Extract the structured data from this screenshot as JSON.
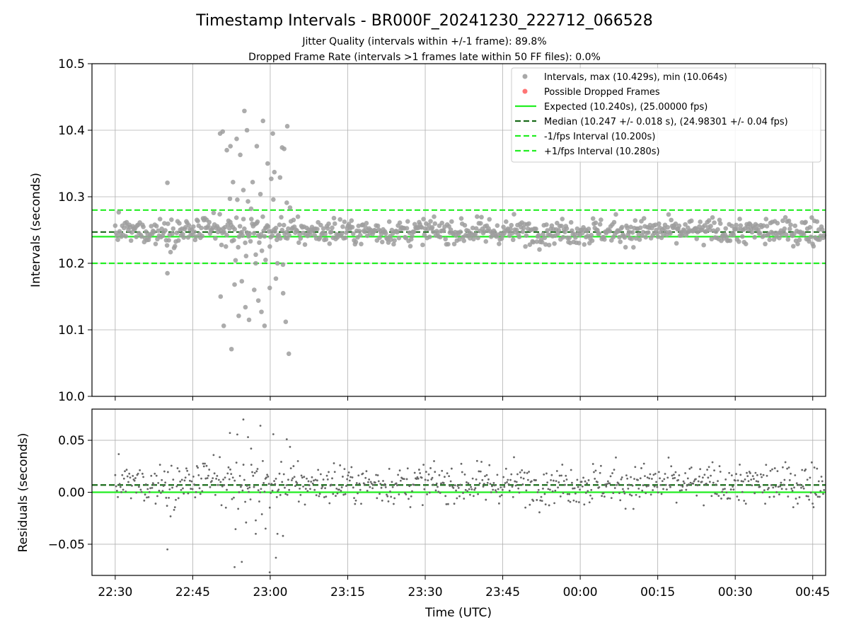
{
  "chart_data": {
    "type": "scatter",
    "title": "Timestamp Intervals - BR000F_20241230_222712_066528",
    "subtitle_lines": [
      "Jitter Quality (intervals within +/-1 frame): 89.8%",
      "Dropped Frame Rate (intervals >1 frames late within 50 FF files): 0.0%"
    ],
    "xlabel": "Time (UTC)",
    "x_ticks": [
      "22:30",
      "22:45",
      "23:00",
      "23:15",
      "23:30",
      "23:45",
      "00:00",
      "00:15",
      "00:30",
      "00:45"
    ],
    "x_tick_minutes": [
      0,
      15,
      30,
      45,
      60,
      75,
      90,
      105,
      120,
      135
    ],
    "x_range_minutes": [
      -4.5,
      137.5
    ],
    "grid": true,
    "legend_position": "top-right",
    "colors": {
      "points": "#9e9e9e",
      "dropped": "#ff6666",
      "expected": "#22ee22",
      "median": "#1a6b1a",
      "bounds": "#22ee22",
      "residual_points": "#666666"
    },
    "top_panel": {
      "ylabel": "Intervals (seconds)",
      "ylim": [
        10.0,
        10.5
      ],
      "y_ticks": [
        "10.0",
        "10.1",
        "10.2",
        "10.3",
        "10.4",
        "10.5"
      ],
      "y_tick_values": [
        10.0,
        10.1,
        10.2,
        10.3,
        10.4,
        10.5
      ],
      "reference_lines": [
        {
          "name": "Expected",
          "value": 10.24,
          "style": "solid"
        },
        {
          "name": "Median",
          "value": 10.247,
          "style": "dashed"
        },
        {
          "name": "-1/fps Interval",
          "value": 10.2,
          "style": "dashed"
        },
        {
          "name": "+1/fps Interval",
          "value": 10.28,
          "style": "dashed"
        }
      ],
      "legend": [
        {
          "label": "Intervals, max (10.429s), min (10.064s)",
          "kind": "dot",
          "color": "#9e9e9e"
        },
        {
          "label": "Possible Dropped Frames",
          "kind": "dot",
          "color": "#ff6666"
        },
        {
          "label": "Expected (10.240s), (25.00000 fps)",
          "kind": "solid",
          "color": "#22ee22"
        },
        {
          "label": "Median (10.247 +/- 0.018 s), (24.98301 +/- 0.04 fps)",
          "kind": "dashed",
          "color": "#1a6b1a"
        },
        {
          "label": "-1/fps Interval (10.200s)",
          "kind": "dashed",
          "color": "#22ee22"
        },
        {
          "label": "+1/fps Interval (10.280s)",
          "kind": "dashed",
          "color": "#22ee22"
        }
      ],
      "outliers": [
        {
          "x": 10.1,
          "y": 10.321
        },
        {
          "x": 10.1,
          "y": 10.185
        },
        {
          "x": 20.3,
          "y": 10.395
        },
        {
          "x": 20.8,
          "y": 10.398
        },
        {
          "x": 20.4,
          "y": 10.15
        },
        {
          "x": 21.0,
          "y": 10.106
        },
        {
          "x": 21.6,
          "y": 10.37
        },
        {
          "x": 22.3,
          "y": 10.376
        },
        {
          "x": 22.2,
          "y": 10.297
        },
        {
          "x": 22.5,
          "y": 10.071
        },
        {
          "x": 22.8,
          "y": 10.322
        },
        {
          "x": 23.1,
          "y": 10.168
        },
        {
          "x": 23.5,
          "y": 10.387
        },
        {
          "x": 23.9,
          "y": 10.121
        },
        {
          "x": 24.2,
          "y": 10.363
        },
        {
          "x": 24.5,
          "y": 10.173
        },
        {
          "x": 24.8,
          "y": 10.31
        },
        {
          "x": 25.0,
          "y": 10.429
        },
        {
          "x": 25.2,
          "y": 10.134
        },
        {
          "x": 25.5,
          "y": 10.4
        },
        {
          "x": 25.7,
          "y": 10.293
        },
        {
          "x": 25.9,
          "y": 10.115
        },
        {
          "x": 26.3,
          "y": 10.282
        },
        {
          "x": 26.6,
          "y": 10.322
        },
        {
          "x": 26.9,
          "y": 10.16
        },
        {
          "x": 27.2,
          "y": 10.2
        },
        {
          "x": 27.4,
          "y": 10.376
        },
        {
          "x": 27.7,
          "y": 10.144
        },
        {
          "x": 28.1,
          "y": 10.304
        },
        {
          "x": 28.3,
          "y": 10.127
        },
        {
          "x": 28.6,
          "y": 10.414
        },
        {
          "x": 28.9,
          "y": 10.106
        },
        {
          "x": 29.1,
          "y": 10.205
        },
        {
          "x": 29.5,
          "y": 10.35
        },
        {
          "x": 29.9,
          "y": 10.163
        },
        {
          "x": 30.2,
          "y": 10.327
        },
        {
          "x": 30.5,
          "y": 10.395
        },
        {
          "x": 30.8,
          "y": 10.337
        },
        {
          "x": 31.1,
          "y": 10.177
        },
        {
          "x": 31.4,
          "y": 10.2
        },
        {
          "x": 31.9,
          "y": 10.329
        },
        {
          "x": 32.3,
          "y": 10.374
        },
        {
          "x": 32.5,
          "y": 10.155
        },
        {
          "x": 32.7,
          "y": 10.372
        },
        {
          "x": 33.0,
          "y": 10.112
        },
        {
          "x": 33.3,
          "y": 10.406
        },
        {
          "x": 33.6,
          "y": 10.064
        },
        {
          "x": 33.2,
          "y": 10.291
        }
      ]
    },
    "bottom_panel": {
      "ylabel": "Residuals (seconds)",
      "ylim": [
        -0.08,
        0.08
      ],
      "y_ticks": [
        "−0.05",
        "0.00",
        "0.05"
      ],
      "y_tick_values": [
        -0.05,
        0.0,
        0.05
      ],
      "expected_residual": 0.0,
      "median_residual": 0.007
    }
  }
}
